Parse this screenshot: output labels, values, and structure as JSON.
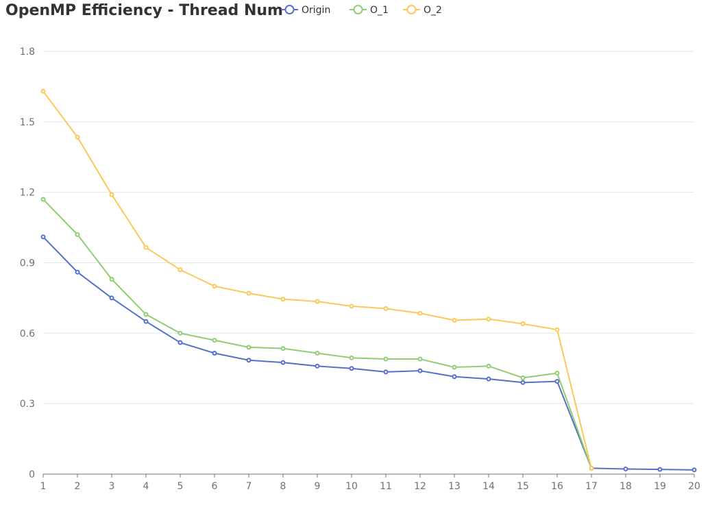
{
  "chart_data": {
    "type": "line",
    "title": "OpenMP Efficiency - Thread Num",
    "xlabel": "",
    "ylabel": "",
    "categories": [
      "1",
      "2",
      "3",
      "4",
      "5",
      "6",
      "7",
      "8",
      "9",
      "10",
      "11",
      "12",
      "13",
      "14",
      "15",
      "16",
      "17",
      "18",
      "19",
      "20"
    ],
    "y_ticks": [
      "0",
      "0.3",
      "0.6",
      "0.9",
      "1.2",
      "1.5",
      "1.8"
    ],
    "ylim": [
      0,
      1.8
    ],
    "grid": true,
    "legend_position": "top",
    "series": [
      {
        "name": "Origin",
        "color": "#5470c6",
        "values": [
          1.01,
          0.86,
          0.75,
          0.65,
          0.56,
          0.515,
          0.485,
          0.475,
          0.46,
          0.45,
          0.435,
          0.44,
          0.415,
          0.405,
          0.39,
          0.395,
          0.025,
          0.022,
          0.02,
          0.018
        ]
      },
      {
        "name": "O_1",
        "color": "#91cc75",
        "values": [
          1.17,
          1.02,
          0.83,
          0.68,
          0.6,
          0.57,
          0.54,
          0.535,
          0.515,
          0.495,
          0.49,
          0.49,
          0.455,
          0.46,
          0.41,
          0.43,
          0.025,
          null,
          null,
          null
        ]
      },
      {
        "name": "O_2",
        "color": "#fac858",
        "values": [
          1.63,
          1.435,
          1.19,
          0.965,
          0.87,
          0.8,
          0.77,
          0.745,
          0.735,
          0.715,
          0.705,
          0.685,
          0.655,
          0.66,
          0.64,
          0.615,
          0.025,
          null,
          null,
          null
        ]
      }
    ]
  }
}
